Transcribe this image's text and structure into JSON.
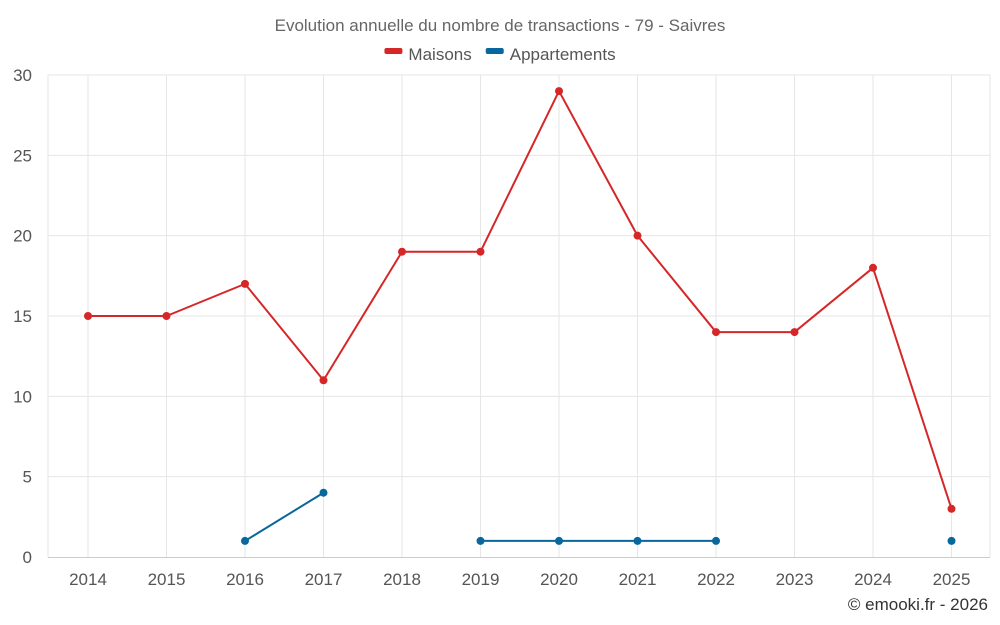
{
  "chart_data": {
    "type": "line",
    "title": "Evolution annuelle du nombre de transactions - 79 - Saivres",
    "categories": [
      "2014",
      "2015",
      "2016",
      "2017",
      "2018",
      "2019",
      "2020",
      "2021",
      "2022",
      "2023",
      "2024",
      "2025"
    ],
    "ylim": [
      0,
      30
    ],
    "yticks": [
      0,
      5,
      10,
      15,
      20,
      25,
      30
    ],
    "grid": true,
    "legend_position": "top-center",
    "series": [
      {
        "name": "Maisons",
        "color": "#d62728",
        "values": [
          15,
          15,
          17,
          11,
          19,
          19,
          29,
          20,
          14,
          14,
          18,
          3
        ]
      },
      {
        "name": "Appartements",
        "color": "#08679c",
        "values": [
          null,
          null,
          1,
          4,
          null,
          1,
          1,
          1,
          1,
          null,
          null,
          1
        ]
      }
    ],
    "credit": "© emooki.fr - 2026"
  }
}
